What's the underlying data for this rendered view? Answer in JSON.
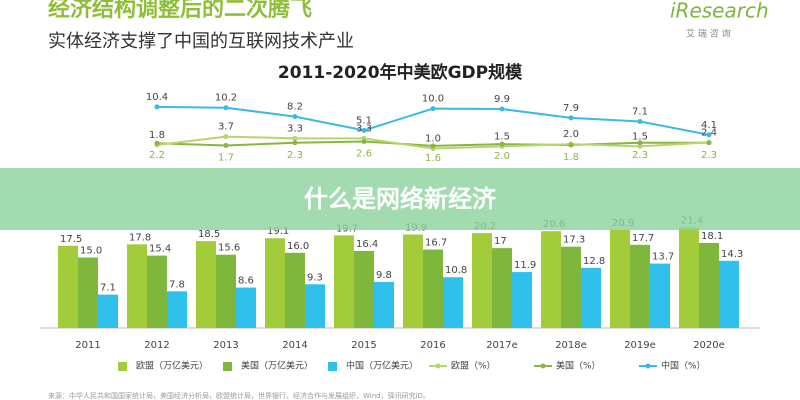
{
  "header": {
    "title": "经济结构调整后的二次腾飞",
    "subtitle": "实体经济支撑了中国的互联网技术产业",
    "logo": "iResearch",
    "logo_sub": "艾 瑞 咨 询"
  },
  "banner": "什么是网络新经济",
  "footnote": "来源：中华人民共和国国家统计局，美国经济分析局，欧盟统计局，世界银行，经济合作与发展组织，Wind，驿讯研究iD。",
  "chart_data": {
    "type": "bar",
    "title": "2011-2020年中美欧GDP规模",
    "categories": [
      "2011",
      "2012",
      "2013",
      "2014",
      "2015",
      "2016",
      "2017e",
      "2018e",
      "2019e",
      "2020e"
    ],
    "series": [
      {
        "name": "欧盟（万亿美元）",
        "type": "bar",
        "color": "#a3cc3a",
        "values": [
          17.5,
          17.8,
          18.5,
          19.1,
          19.7,
          19.9,
          20.2,
          20.6,
          20.9,
          21.4
        ]
      },
      {
        "name": "美国（万亿美元）",
        "type": "bar",
        "color": "#7fb63c",
        "values": [
          15.0,
          15.4,
          15.6,
          16.0,
          16.4,
          16.7,
          17,
          17.3,
          17.7,
          18.1
        ],
        "value_labels": [
          "15.0",
          "15.4",
          "15.6",
          "16.0",
          "16.4",
          "16.7",
          "17",
          "17.3",
          "17.7",
          "18.1"
        ]
      },
      {
        "name": "中国（万亿美元）",
        "type": "bar",
        "color": "#2fc0ec",
        "values": [
          7.1,
          7.8,
          8.6,
          9.3,
          9.8,
          10.8,
          11.9,
          12.8,
          13.7,
          14.3
        ]
      },
      {
        "name": "欧盟（%）",
        "type": "line",
        "color": "#b6d66a",
        "values": [
          null,
          1.8,
          3.7,
          3.3,
          3.3,
          1.0,
          1.5,
          2.0,
          1.5,
          2.4
        ],
        "value_labels": [
          null,
          "1.8",
          "3.7",
          "3.3",
          "3.3",
          "1.0",
          "1.5",
          "2.0",
          "1.5",
          "2.4"
        ]
      },
      {
        "name": "美国（%）",
        "type": "line",
        "color": "#8bb542",
        "values": [
          null,
          2.2,
          1.7,
          2.3,
          2.6,
          1.6,
          2.0,
          1.8,
          2.3,
          2.3
        ],
        "value_labels": [
          null,
          "2.2",
          "1.7",
          "2.3",
          "2.6",
          "1.6",
          "2.0",
          "1.8",
          "2.3",
          "2.3"
        ]
      },
      {
        "name": "中国（%）",
        "type": "line",
        "color": "#3cb9e2",
        "values": [
          null,
          10.4,
          10.2,
          8.2,
          5.1,
          10.0,
          9.9,
          7.9,
          7.1,
          4.1
        ],
        "value_labels": [
          null,
          "10.4",
          "10.2",
          "8.2",
          "5.1",
          "10.0",
          "9.9",
          "7.9",
          "7.1",
          "4.1"
        ]
      }
    ]
  }
}
